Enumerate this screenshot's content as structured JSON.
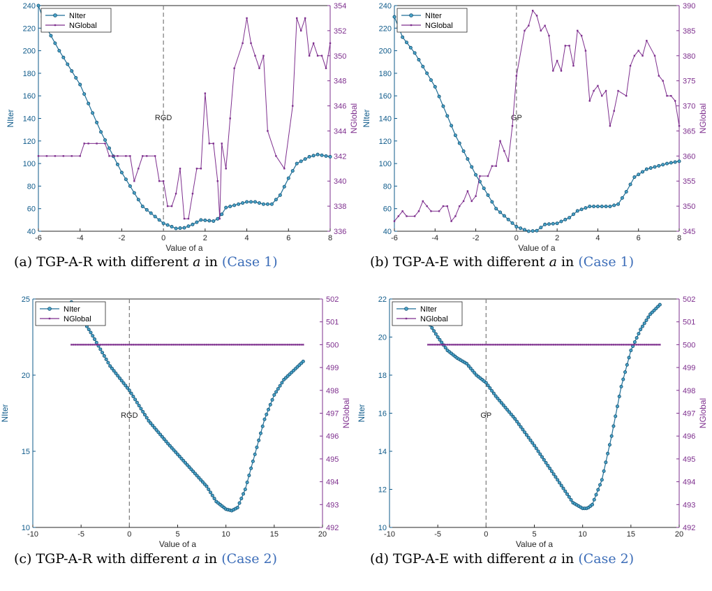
{
  "colors": {
    "niter": "#1f6e96",
    "nglobal": "#7e2f8e",
    "axis_left": "#0e5a8a",
    "axis_right": "#7e2f8e",
    "vline": "#7a7a7a",
    "link": "#3c6db8"
  },
  "chart_data": [
    {
      "type": "line",
      "caption": {
        "prefix": "(a) TGP-A-R with different ",
        "var": "a",
        "mid": " in ",
        "link": "(Case 1)"
      },
      "xlabel": "Value of a",
      "ylabel": "NIter",
      "y2label": "NGlobal",
      "xlim": [
        -6,
        8
      ],
      "ylim": [
        40,
        240
      ],
      "y2lim": [
        336,
        354
      ],
      "xticks": [
        "-6",
        "-4",
        "-2",
        "0",
        "2",
        "4",
        "6",
        "8"
      ],
      "yticks": [
        "40",
        "60",
        "80",
        "100",
        "120",
        "140",
        "160",
        "180",
        "200",
        "220",
        "240"
      ],
      "y2ticks": [
        "336",
        "338",
        "340",
        "342",
        "344",
        "346",
        "348",
        "350",
        "352",
        "354"
      ],
      "vline_x": 0,
      "vline_label": "RGD",
      "legend_position": "top-left",
      "series": [
        {
          "name": "NIter",
          "axis": "left",
          "x_range": [
            -6,
            8,
            0.2
          ],
          "y_points": [
            [
              -6,
              240
            ],
            [
              -5.6,
              220
            ],
            [
              -5,
              200
            ],
            [
              -4,
              170
            ],
            [
              -3,
              128
            ],
            [
              -2,
              92
            ],
            [
              -1,
              62
            ],
            [
              0,
              47
            ],
            [
              0.6,
              42.5
            ],
            [
              1,
              43
            ],
            [
              1.4,
              46
            ],
            [
              1.8,
              50
            ],
            [
              2.4,
              49
            ],
            [
              2.7,
              52
            ],
            [
              3,
              61
            ],
            [
              3.6,
              64
            ],
            [
              4,
              66
            ],
            [
              4.4,
              66
            ],
            [
              4.8,
              64
            ],
            [
              5.2,
              64
            ],
            [
              5.6,
              72
            ],
            [
              6,
              87
            ],
            [
              6.4,
              100
            ],
            [
              7,
              106
            ],
            [
              7.4,
              108
            ],
            [
              8,
              106
            ]
          ]
        },
        {
          "name": "NGlobal",
          "axis": "right",
          "points": [
            [
              -6,
              342
            ],
            [
              -5.6,
              342
            ],
            [
              -5.2,
              342
            ],
            [
              -4.8,
              342
            ],
            [
              -4.4,
              342
            ],
            [
              -4,
              342
            ],
            [
              -3.8,
              343
            ],
            [
              -3.6,
              343
            ],
            [
              -3.2,
              343
            ],
            [
              -2.8,
              343
            ],
            [
              -2.6,
              342
            ],
            [
              -2.4,
              342
            ],
            [
              -2.2,
              342
            ],
            [
              -1.8,
              342
            ],
            [
              -1.6,
              342
            ],
            [
              -1.4,
              340
            ],
            [
              -1.2,
              341
            ],
            [
              -1,
              342
            ],
            [
              -0.8,
              342
            ],
            [
              -0.4,
              342
            ],
            [
              -0.2,
              340
            ],
            [
              0,
              340
            ],
            [
              0.2,
              338
            ],
            [
              0.4,
              338
            ],
            [
              0.6,
              339
            ],
            [
              0.8,
              341
            ],
            [
              1,
              337
            ],
            [
              1.2,
              337
            ],
            [
              1.4,
              339
            ],
            [
              1.6,
              341
            ],
            [
              1.8,
              341
            ],
            [
              2,
              347
            ],
            [
              2.2,
              343
            ],
            [
              2.4,
              343
            ],
            [
              2.6,
              340
            ],
            [
              2.7,
              337
            ],
            [
              2.8,
              343
            ],
            [
              3,
              341
            ],
            [
              3.2,
              345
            ],
            [
              3.4,
              349
            ],
            [
              3.8,
              351
            ],
            [
              4,
              353
            ],
            [
              4.2,
              351
            ],
            [
              4.4,
              350
            ],
            [
              4.6,
              349
            ],
            [
              4.8,
              350
            ],
            [
              5,
              344
            ],
            [
              5.4,
              342
            ],
            [
              5.8,
              341
            ],
            [
              6.2,
              346
            ],
            [
              6.4,
              353
            ],
            [
              6.6,
              352
            ],
            [
              6.8,
              353
            ],
            [
              7,
              350
            ],
            [
              7.2,
              351
            ],
            [
              7.4,
              350
            ],
            [
              7.6,
              350
            ],
            [
              7.8,
              349
            ],
            [
              8,
              351
            ]
          ]
        }
      ]
    },
    {
      "type": "line",
      "caption": {
        "prefix": "(b) TGP-A-E with different ",
        "var": "a",
        "mid": " in ",
        "link": "(Case 1)"
      },
      "xlabel": "Value of a",
      "ylabel": "NIter",
      "y2label": "NGlobal",
      "xlim": [
        -6,
        8
      ],
      "ylim": [
        40,
        240
      ],
      "y2lim": [
        345,
        390
      ],
      "xticks": [
        "-6",
        "-4",
        "-2",
        "0",
        "2",
        "4",
        "6",
        "8"
      ],
      "yticks": [
        "40",
        "60",
        "80",
        "100",
        "120",
        "140",
        "160",
        "180",
        "200",
        "220",
        "240"
      ],
      "y2ticks": [
        "345",
        "350",
        "355",
        "360",
        "365",
        "370",
        "375",
        "380",
        "385",
        "390"
      ],
      "vline_x": 0,
      "vline_label": "GP",
      "legend_position": "top-left",
      "series": [
        {
          "name": "NIter",
          "axis": "left",
          "x_range": [
            -6,
            8,
            0.2
          ],
          "y_points": [
            [
              -6,
              230
            ],
            [
              -5.6,
              212
            ],
            [
              -5,
              198
            ],
            [
              -4,
              168
            ],
            [
              -3,
              125
            ],
            [
              -2,
              90
            ],
            [
              -1,
              60
            ],
            [
              0,
              44
            ],
            [
              0.6,
              40
            ],
            [
              1,
              40.5
            ],
            [
              1.4,
              46
            ],
            [
              2,
              47
            ],
            [
              2.6,
              52
            ],
            [
              3,
              58
            ],
            [
              3.6,
              62
            ],
            [
              4,
              62
            ],
            [
              4.6,
              62
            ],
            [
              5,
              64
            ],
            [
              5.4,
              75
            ],
            [
              5.8,
              88
            ],
            [
              6.4,
              95
            ],
            [
              7,
              98
            ],
            [
              7.4,
              100
            ],
            [
              8,
              102
            ]
          ]
        },
        {
          "name": "NGlobal",
          "axis": "right",
          "points": [
            [
              -6,
              347
            ],
            [
              -5.8,
              348
            ],
            [
              -5.6,
              349
            ],
            [
              -5.4,
              348
            ],
            [
              -5,
              348
            ],
            [
              -4.8,
              349
            ],
            [
              -4.6,
              351
            ],
            [
              -4.4,
              350
            ],
            [
              -4.2,
              349
            ],
            [
              -3.8,
              349
            ],
            [
              -3.6,
              350
            ],
            [
              -3.4,
              350
            ],
            [
              -3.2,
              347
            ],
            [
              -3,
              348
            ],
            [
              -2.8,
              350
            ],
            [
              -2.6,
              351
            ],
            [
              -2.4,
              353
            ],
            [
              -2.2,
              351
            ],
            [
              -2,
              352
            ],
            [
              -1.8,
              356
            ],
            [
              -1.4,
              356
            ],
            [
              -1.2,
              358
            ],
            [
              -1,
              358
            ],
            [
              -0.8,
              363
            ],
            [
              -0.6,
              361
            ],
            [
              -0.4,
              359
            ],
            [
              -0.2,
              366
            ],
            [
              0,
              376
            ],
            [
              0.4,
              385
            ],
            [
              0.6,
              386
            ],
            [
              0.8,
              389
            ],
            [
              1,
              388
            ],
            [
              1.2,
              385
            ],
            [
              1.4,
              386
            ],
            [
              1.6,
              384
            ],
            [
              1.8,
              377
            ],
            [
              2,
              379
            ],
            [
              2.2,
              377
            ],
            [
              2.4,
              382
            ],
            [
              2.6,
              382
            ],
            [
              2.8,
              378
            ],
            [
              3,
              385
            ],
            [
              3.2,
              384
            ],
            [
              3.4,
              381
            ],
            [
              3.6,
              371
            ],
            [
              3.8,
              373
            ],
            [
              4,
              374
            ],
            [
              4.2,
              372
            ],
            [
              4.4,
              373
            ],
            [
              4.6,
              366
            ],
            [
              4.8,
              369
            ],
            [
              5,
              373
            ],
            [
              5.4,
              372
            ],
            [
              5.6,
              378
            ],
            [
              5.8,
              380
            ],
            [
              6,
              381
            ],
            [
              6.2,
              380
            ],
            [
              6.4,
              383
            ],
            [
              6.8,
              380
            ],
            [
              7,
              376
            ],
            [
              7.2,
              375
            ],
            [
              7.4,
              372
            ],
            [
              7.6,
              372
            ],
            [
              7.8,
              371
            ],
            [
              8,
              366
            ]
          ]
        }
      ]
    },
    {
      "type": "line",
      "caption": {
        "prefix": "(c) TGP-A-R with different ",
        "var": "a",
        "mid": " in ",
        "link": "(Case 2)"
      },
      "xlabel": "Value of a",
      "ylabel": "NIter",
      "y2label": "NGlobal",
      "xlim": [
        -10,
        20
      ],
      "ylim": [
        10,
        25
      ],
      "y2lim": [
        492,
        502
      ],
      "xticks": [
        "-10",
        "-5",
        "0",
        "5",
        "10",
        "15",
        "20"
      ],
      "yticks": [
        "10",
        "15",
        "20",
        "25"
      ],
      "y2ticks": [
        "492",
        "493",
        "494",
        "495",
        "496",
        "497",
        "498",
        "499",
        "500",
        "501",
        "502"
      ],
      "vline_x": 0,
      "vline_label": "RGD",
      "legend_position": "top-left",
      "series": [
        {
          "name": "NIter",
          "axis": "left",
          "x_range": [
            -6,
            18,
            0.2
          ],
          "y_points": [
            [
              -6,
              24.8
            ],
            [
              -4,
              22.8
            ],
            [
              -2,
              20.6
            ],
            [
              0,
              19.0
            ],
            [
              2,
              17.0
            ],
            [
              4,
              15.5
            ],
            [
              6,
              14.1
            ],
            [
              8,
              12.7
            ],
            [
              9,
              11.7
            ],
            [
              10,
              11.2
            ],
            [
              10.6,
              11.1
            ],
            [
              11.2,
              11.3
            ],
            [
              12,
              12.5
            ],
            [
              13,
              14.8
            ],
            [
              14,
              17.1
            ],
            [
              15,
              18.7
            ],
            [
              16,
              19.7
            ],
            [
              17,
              20.3
            ],
            [
              18,
              20.9
            ]
          ]
        },
        {
          "name": "NGlobal",
          "axis": "right",
          "x_range": [
            -6,
            18,
            0.2
          ],
          "constant": 500
        }
      ]
    },
    {
      "type": "line",
      "caption": {
        "prefix": "(d) TGP-A-E with different ",
        "var": "a",
        "mid": " in ",
        "link": "(Case 2)"
      },
      "xlabel": "Value of a",
      "ylabel": "NIter",
      "y2label": "NGlobal",
      "xlim": [
        -10,
        20
      ],
      "ylim": [
        10,
        22
      ],
      "y2lim": [
        492,
        502
      ],
      "xticks": [
        "-10",
        "-5",
        "0",
        "5",
        "10",
        "15",
        "20"
      ],
      "yticks": [
        "10",
        "12",
        "14",
        "16",
        "18",
        "20",
        "22"
      ],
      "y2ticks": [
        "492",
        "493",
        "494",
        "495",
        "496",
        "497",
        "498",
        "499",
        "500",
        "501",
        "502"
      ],
      "vline_x": 0,
      "vline_label": "GP",
      "legend_position": "top-left",
      "series": [
        {
          "name": "NIter",
          "axis": "left",
          "x_range": [
            -6,
            18,
            0.2
          ],
          "y_points": [
            [
              -6,
              20.8
            ],
            [
              -5,
              20.0
            ],
            [
              -4,
              19.3
            ],
            [
              -3,
              18.9
            ],
            [
              -2,
              18.6
            ],
            [
              -1,
              18.0
            ],
            [
              0,
              17.6
            ],
            [
              1,
              16.9
            ],
            [
              3,
              15.7
            ],
            [
              5,
              14.3
            ],
            [
              7,
              12.8
            ],
            [
              9,
              11.3
            ],
            [
              10,
              11.0
            ],
            [
              10.5,
              11.0
            ],
            [
              11,
              11.2
            ],
            [
              12,
              12.5
            ],
            [
              13,
              14.8
            ],
            [
              14,
              17.4
            ],
            [
              15,
              19.3
            ],
            [
              16,
              20.4
            ],
            [
              17,
              21.2
            ],
            [
              18,
              21.7
            ]
          ]
        },
        {
          "name": "NGlobal",
          "axis": "right",
          "x_range": [
            -6,
            18,
            0.2
          ],
          "constant": 500
        }
      ]
    }
  ]
}
